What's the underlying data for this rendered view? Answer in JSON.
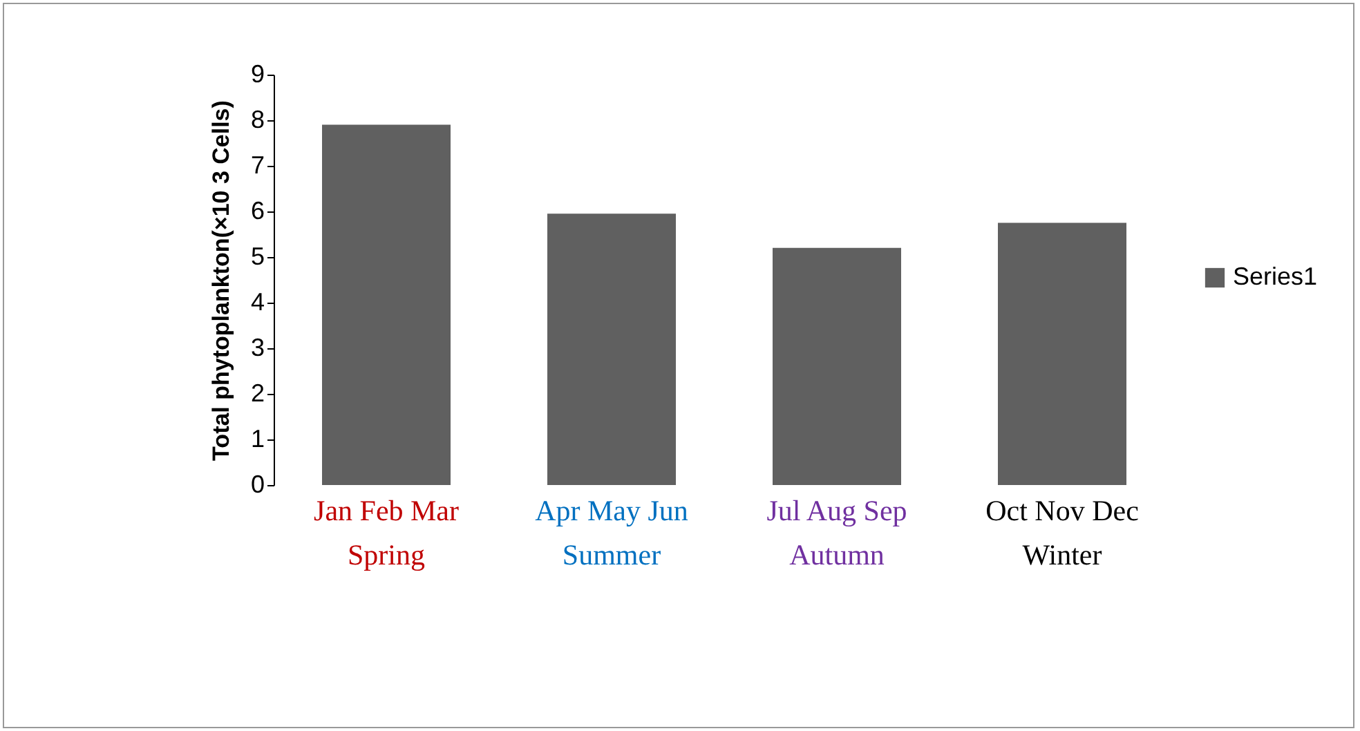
{
  "chart_data": {
    "type": "bar",
    "ylabel": "Total phytoplankton(×10 3 Cells)",
    "categories": [
      "Jan Feb Mar\nSpring",
      "Apr May Jun\nSummer",
      "Jul Aug Sep\nAutumn",
      "Oct Nov Dec\nWinter"
    ],
    "series": [
      {
        "name": "Series1",
        "color": "#606060",
        "values": [
          7.9,
          5.95,
          5.2,
          5.75
        ]
      }
    ],
    "ylim": [
      0,
      9
    ],
    "yticks": [
      0,
      1,
      2,
      3,
      4,
      5,
      6,
      7,
      8,
      9
    ],
    "grid": false,
    "legend": "right"
  }
}
